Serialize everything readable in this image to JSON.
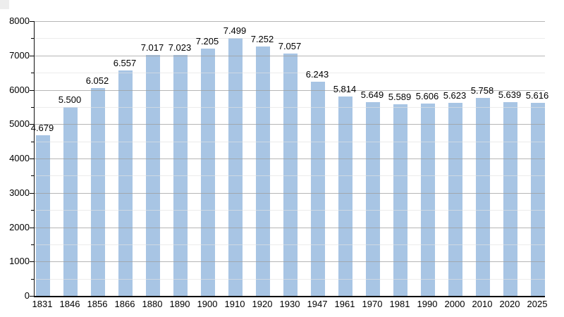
{
  "chart_data": {
    "type": "bar",
    "title": "",
    "xlabel": "",
    "ylabel": "",
    "legend": "none",
    "grid": "horizontal major (1000) and minor (500) gridlines",
    "ylim": [
      0,
      8000
    ],
    "y_major_step": 1000,
    "y_minor_step": 500,
    "y_tick_labels": [
      "0",
      "1000",
      "2000",
      "3000",
      "4000",
      "5000",
      "6000",
      "7000",
      "8000"
    ],
    "categories": [
      "1831",
      "1846",
      "1856",
      "1866",
      "1880",
      "1890",
      "1900",
      "1910",
      "1920",
      "1930",
      "1947",
      "1961",
      "1970",
      "1981",
      "1990",
      "2000",
      "2010",
      "2020",
      "2025"
    ],
    "values": [
      4679,
      5500,
      6052,
      6557,
      7017,
      7023,
      7205,
      7499,
      7252,
      7057,
      6243,
      5814,
      5649,
      5589,
      5606,
      5623,
      5758,
      5639,
      5616
    ],
    "value_labels": [
      "4.679",
      "5.500",
      "6.052",
      "6.557",
      "7.017",
      "7.023",
      "7.205",
      "7.499",
      "7.252",
      "7.057",
      "6.243",
      "5.814",
      "5.649",
      "5.589",
      "5.606",
      "5.623",
      "5.758",
      "5.639",
      "5.616"
    ],
    "colors": {
      "bar_fill": "#a8c5e4",
      "grid_major": "#9e9e9e",
      "grid_minor": "#e2e2e2",
      "axis": "#000000",
      "background": "#ffffff",
      "text": "#000000"
    }
  }
}
